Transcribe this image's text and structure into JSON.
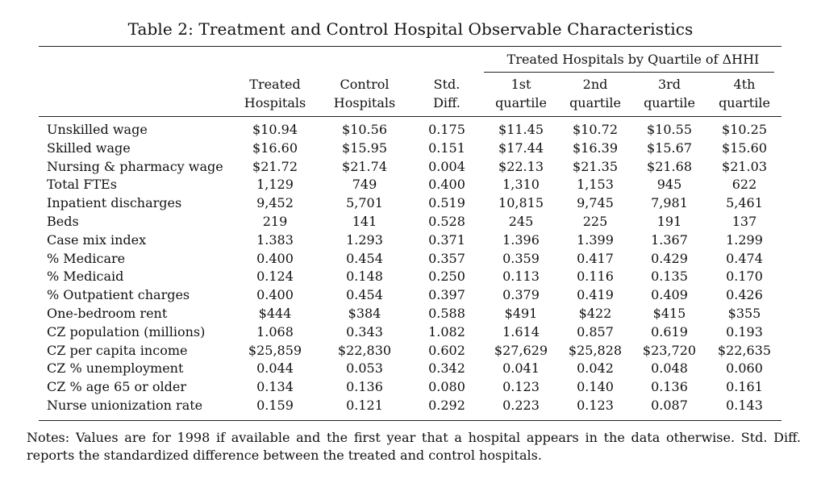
{
  "caption": "Table 2: Treatment and Control Hospital Observable Characteristics",
  "group_header": "Treated Hospitals by Quartile of ΔHHI",
  "columns": [
    {
      "line1": "Treated",
      "line2": "Hospitals"
    },
    {
      "line1": "Control",
      "line2": "Hospitals"
    },
    {
      "line1": "Std.",
      "line2": "Diff."
    },
    {
      "line1": "1st",
      "line2": "quartile"
    },
    {
      "line1": "2nd",
      "line2": "quartile"
    },
    {
      "line1": "3rd",
      "line2": "quartile"
    },
    {
      "line1": "4th",
      "line2": "quartile"
    }
  ],
  "rows": [
    {
      "label": "Unskilled wage",
      "values": [
        "$10.94",
        "$10.56",
        "0.175",
        "$11.45",
        "$10.72",
        "$10.55",
        "$10.25"
      ]
    },
    {
      "label": "Skilled wage",
      "values": [
        "$16.60",
        "$15.95",
        "0.151",
        "$17.44",
        "$16.39",
        "$15.67",
        "$15.60"
      ]
    },
    {
      "label": "Nursing & pharmacy wage",
      "values": [
        "$21.72",
        "$21.74",
        "0.004",
        "$22.13",
        "$21.35",
        "$21.68",
        "$21.03"
      ]
    },
    {
      "label": "Total FTEs",
      "values": [
        "1,129",
        "749",
        "0.400",
        "1,310",
        "1,153",
        "945",
        "622"
      ]
    },
    {
      "label": "Inpatient discharges",
      "values": [
        "9,452",
        "5,701",
        "0.519",
        "10,815",
        "9,745",
        "7,981",
        "5,461"
      ]
    },
    {
      "label": "Beds",
      "values": [
        "219",
        "141",
        "0.528",
        "245",
        "225",
        "191",
        "137"
      ]
    },
    {
      "label": "Case mix index",
      "values": [
        "1.383",
        "1.293",
        "0.371",
        "1.396",
        "1.399",
        "1.367",
        "1.299"
      ]
    },
    {
      "label": "% Medicare",
      "values": [
        "0.400",
        "0.454",
        "0.357",
        "0.359",
        "0.417",
        "0.429",
        "0.474"
      ]
    },
    {
      "label": "% Medicaid",
      "values": [
        "0.124",
        "0.148",
        "0.250",
        "0.113",
        "0.116",
        "0.135",
        "0.170"
      ]
    },
    {
      "label": "% Outpatient charges",
      "values": [
        "0.400",
        "0.454",
        "0.397",
        "0.379",
        "0.419",
        "0.409",
        "0.426"
      ]
    },
    {
      "label": "One-bedroom rent",
      "values": [
        "$444",
        "$384",
        "0.588",
        "$491",
        "$422",
        "$415",
        "$355"
      ]
    },
    {
      "label": "CZ population (millions)",
      "values": [
        "1.068",
        "0.343",
        "1.082",
        "1.614",
        "0.857",
        "0.619",
        "0.193"
      ]
    },
    {
      "label": "CZ per capita income",
      "values": [
        "$25,859",
        "$22,830",
        "0.602",
        "$27,629",
        "$25,828",
        "$23,720",
        "$22,635"
      ]
    },
    {
      "label": "CZ % unemployment",
      "values": [
        "0.044",
        "0.053",
        "0.342",
        "0.041",
        "0.042",
        "0.048",
        "0.060"
      ]
    },
    {
      "label": "CZ % age 65 or older",
      "values": [
        "0.134",
        "0.136",
        "0.080",
        "0.123",
        "0.140",
        "0.136",
        "0.161"
      ]
    },
    {
      "label": "Nurse unionization rate",
      "values": [
        "0.159",
        "0.121",
        "0.292",
        "0.223",
        "0.123",
        "0.087",
        "0.143"
      ]
    }
  ],
  "notes": "Notes: Values are for 1998 if available and the first year that a hospital appears in the data otherwise. Std. Diff. reports the standardized difference between the treated and control hospitals."
}
